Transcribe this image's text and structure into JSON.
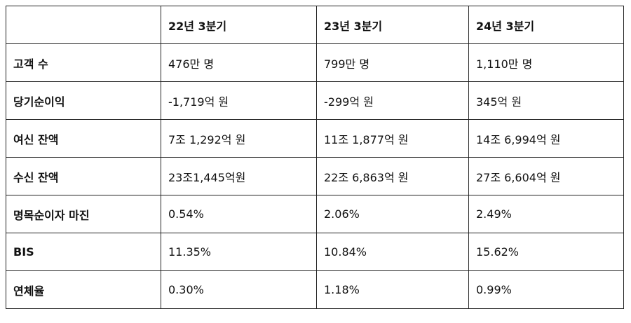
{
  "table": {
    "header": [
      "22년 3분기",
      "23년 3분기",
      "24년 3분기"
    ],
    "rows": [
      [
        "고객 수",
        "476만 명",
        "799만 명",
        "1,110만 명"
      ],
      [
        "당기순이익",
        "-1,719억 원",
        "-299억 원",
        "345억 원"
      ],
      [
        "여신 잔액",
        "7조 1,292억 원",
        "11조 1,877억 원",
        "14조 6,994억 원"
      ],
      [
        "수신 잔액",
        "23조1,445억원",
        "22조 6,863억 원",
        "27조 6,604억 원"
      ],
      [
        "명목순이자 마진",
        "0.54%",
        "2.06%",
        "2.49%"
      ],
      [
        "BIS",
        "11.35%",
        "10.84%",
        "15.62%"
      ],
      [
        "연체율",
        "0.30%",
        "1.18%",
        "0.99%"
      ]
    ]
  }
}
